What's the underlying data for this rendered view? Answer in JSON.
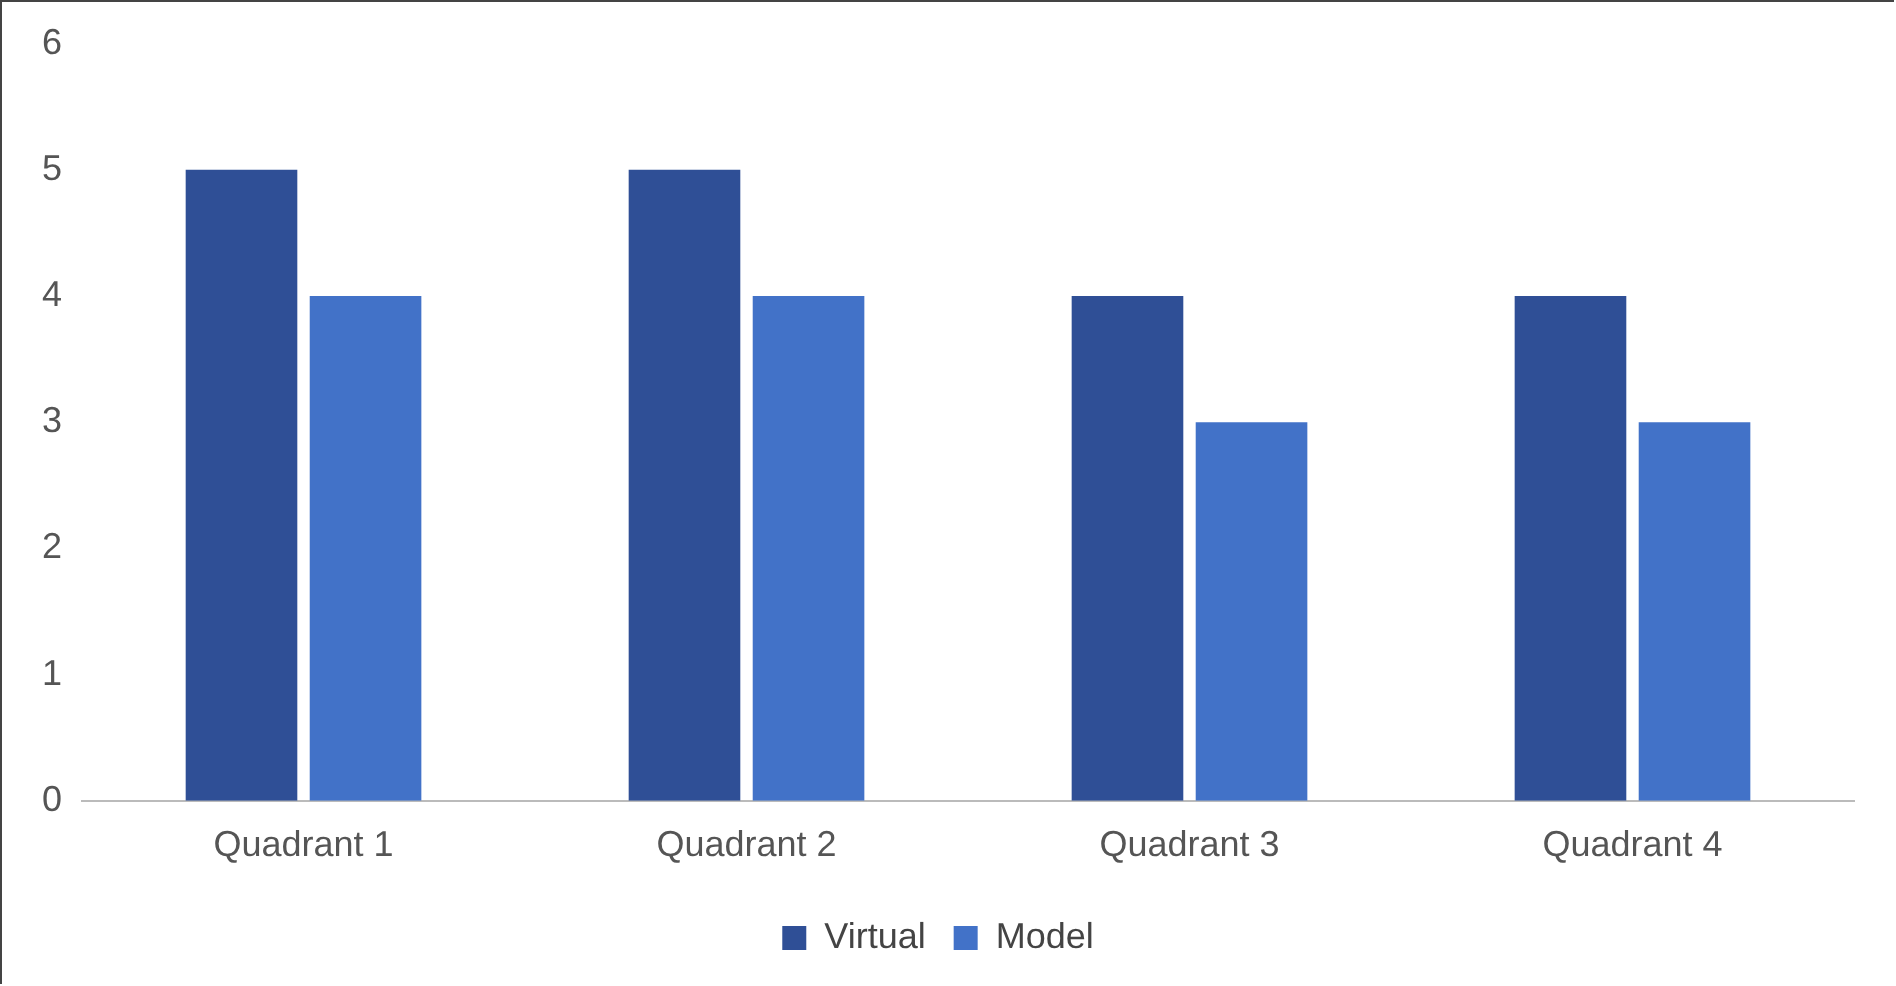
{
  "chart_data": {
    "type": "bar",
    "categories": [
      "Quadrant 1",
      "Quadrant 2",
      "Quadrant 3",
      "Quadrant 4"
    ],
    "series": [
      {
        "name": "Virtual",
        "color": "#2f4f96",
        "values": [
          5,
          5,
          4,
          4
        ]
      },
      {
        "name": "Model",
        "color": "#4272c8",
        "values": [
          4,
          4,
          3,
          3
        ]
      }
    ],
    "ylim": [
      0,
      6
    ],
    "yticks": [
      0,
      1,
      2,
      3,
      4,
      5,
      6
    ],
    "grid": false,
    "legend": "bottom"
  }
}
